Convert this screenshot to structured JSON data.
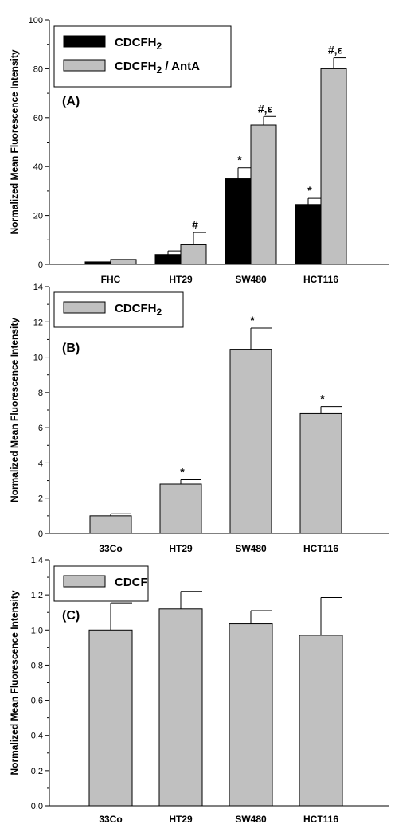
{
  "chart_data": [
    {
      "type": "bar",
      "panel": "(A)",
      "ylabel": "Normalized Mean Fluorescence Intensity",
      "ylim": [
        0,
        100
      ],
      "yticks": [
        0,
        20,
        40,
        60,
        80,
        100
      ],
      "categories": [
        "FHC",
        "HT29",
        "SW480",
        "HCT116"
      ],
      "legend_position": "top-left",
      "series": [
        {
          "name": "CDCFH₂",
          "color": "#000000",
          "values": [
            1,
            4,
            35,
            24.5
          ],
          "errors": [
            0,
            1.5,
            4.5,
            2.5
          ],
          "annotations": [
            "",
            "",
            "*",
            "*"
          ]
        },
        {
          "name": "CDCFH₂ / AntA",
          "color": "#c0c0c0",
          "values": [
            2,
            8,
            57,
            80
          ],
          "errors": [
            0,
            5,
            3.5,
            4.5
          ],
          "annotations": [
            "",
            "#",
            "#,ε",
            "#,ε"
          ]
        }
      ]
    },
    {
      "type": "bar",
      "panel": "(B)",
      "ylabel": "Normalized Mean Fluorescence Intensity",
      "ylim": [
        0,
        14
      ],
      "yticks": [
        0,
        2,
        4,
        6,
        8,
        10,
        12,
        14
      ],
      "categories": [
        "33Co",
        "HT29",
        "SW480",
        "HCT116"
      ],
      "legend_position": "top-left",
      "series": [
        {
          "name": "CDCFH₂",
          "color": "#c0c0c0",
          "values": [
            1.0,
            2.8,
            10.45,
            6.8
          ],
          "errors": [
            0.12,
            0.25,
            1.2,
            0.4
          ],
          "annotations": [
            "",
            "*",
            "*",
            "*"
          ]
        }
      ]
    },
    {
      "type": "bar",
      "panel": "(C)",
      "ylabel": "Normalized Mean Fluorescence Intensity",
      "ylim": [
        0.0,
        1.4
      ],
      "yticks": [
        0.0,
        0.2,
        0.4,
        0.6,
        0.8,
        1.0,
        1.2,
        1.4
      ],
      "categories": [
        "33Co",
        "HT29",
        "SW480",
        "HCT116"
      ],
      "legend_position": "top-left",
      "series": [
        {
          "name": "CDCF",
          "color": "#c0c0c0",
          "values": [
            1.0,
            1.12,
            1.035,
            0.97
          ],
          "errors": [
            0.155,
            0.1,
            0.075,
            0.215
          ],
          "annotations": [
            "",
            "",
            "",
            ""
          ]
        }
      ]
    }
  ]
}
